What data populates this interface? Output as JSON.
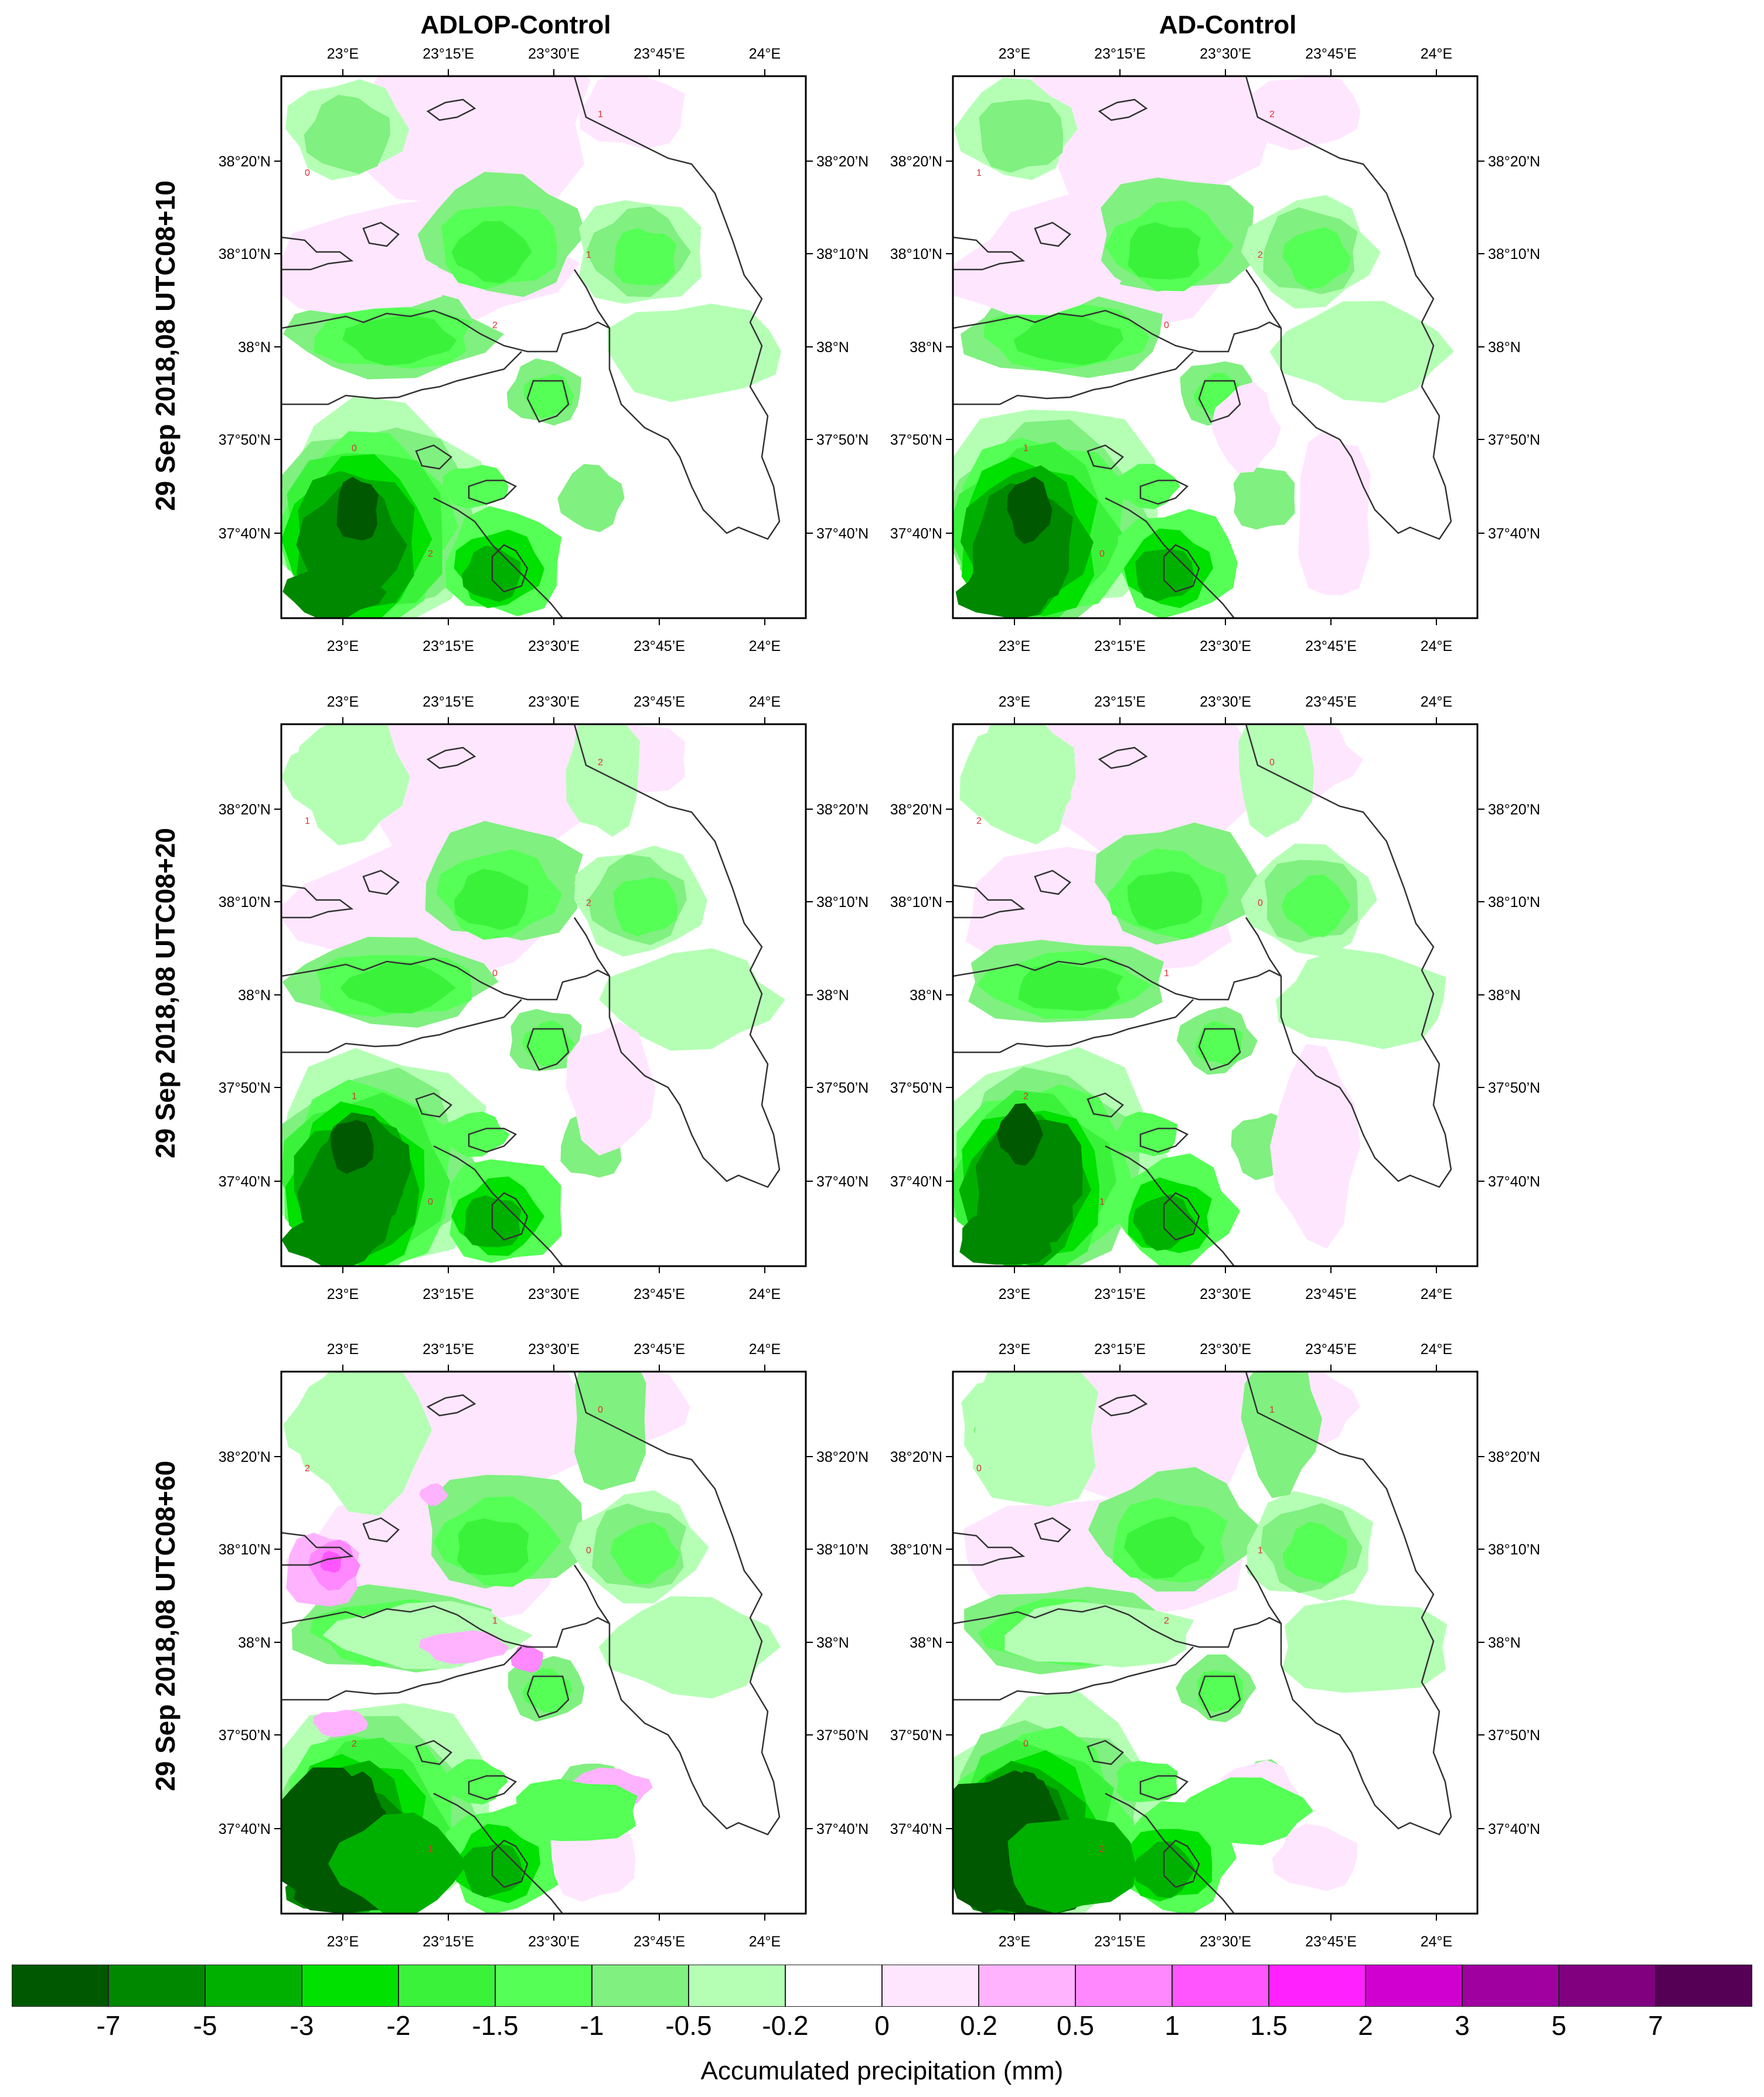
{
  "columns": [
    "ADLOP-Control",
    "AD-Control"
  ],
  "rows": [
    "29 Sep 2018,08 UTC08+10",
    "29 Sep 2018,08 UTC08+20",
    "29 Sep 2018,08 UTC08+60"
  ],
  "lon_ticks": [
    "23°E",
    "23°15’E",
    "23°30’E",
    "23°45’E",
    "24°E"
  ],
  "lat_ticks": [
    "38°20’N",
    "38°10’N",
    "38°N",
    "37°50’N",
    "37°40’N"
  ],
  "colorbar": {
    "title": "Accumulated precipitation (mm)",
    "labels": [
      "-7",
      "-5",
      "-3",
      "-2",
      "-1.5",
      "-1",
      "-0.5",
      "-0.2",
      "0",
      "0.2",
      "0.5",
      "1",
      "1.5",
      "2",
      "3",
      "5",
      "7"
    ],
    "colors": [
      "#005800",
      "#008800",
      "#00b000",
      "#00e100",
      "#3bf23b",
      "#55ff55",
      "#80f080",
      "#b5ffb5",
      "#ffffff",
      "#ffe6ff",
      "#ffb3ff",
      "#ff88ff",
      "#ff55ff",
      "#ff22ff",
      "#d000d0",
      "#a000a0",
      "#800080",
      "#550055"
    ]
  },
  "contour_labels": [
    "0",
    "1",
    "2"
  ]
}
